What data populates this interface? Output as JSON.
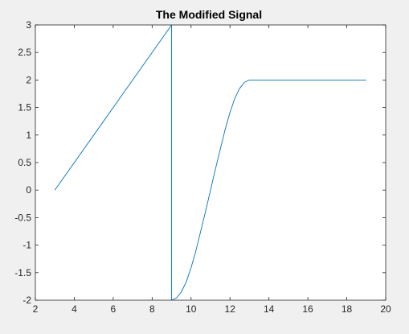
{
  "chart_data": {
    "type": "line",
    "title": "The Modified Signal",
    "xlabel": "",
    "ylabel": "",
    "xlim": [
      2,
      20
    ],
    "ylim": [
      -2,
      3
    ],
    "x_ticks": [
      2,
      4,
      6,
      8,
      10,
      12,
      14,
      16,
      18,
      20
    ],
    "y_ticks": [
      -2,
      -1.5,
      -1,
      -0.5,
      0,
      0.5,
      1,
      1.5,
      2,
      2.5,
      3
    ],
    "x_tick_labels": [
      "2",
      "4",
      "6",
      "8",
      "10",
      "12",
      "14",
      "16",
      "18",
      "20"
    ],
    "y_tick_labels": [
      "-2",
      "-1.5",
      "-1",
      "-0.5",
      "0",
      "0.5",
      "1",
      "1.5",
      "2",
      "2.5",
      "3"
    ],
    "grid": false,
    "box": true,
    "series": [
      {
        "color": "#0072bd",
        "x": [
          3,
          9,
          9,
          9.25,
          9.5,
          9.75,
          10,
          10.25,
          10.5,
          10.75,
          11,
          11.25,
          11.5,
          11.75,
          12,
          12.25,
          12.5,
          12.75,
          13,
          19
        ],
        "y": [
          0,
          3,
          -2,
          -1.96,
          -1.85,
          -1.67,
          -1.41,
          -1.1,
          -0.74,
          -0.38,
          0,
          0.38,
          0.74,
          1.1,
          1.41,
          1.67,
          1.85,
          1.96,
          2,
          2
        ]
      }
    ]
  },
  "colors": {
    "figure_background": "#f0f0f0",
    "axes_background": "#ffffff",
    "axis_color": "#262626",
    "line_color": "#0072bd"
  }
}
